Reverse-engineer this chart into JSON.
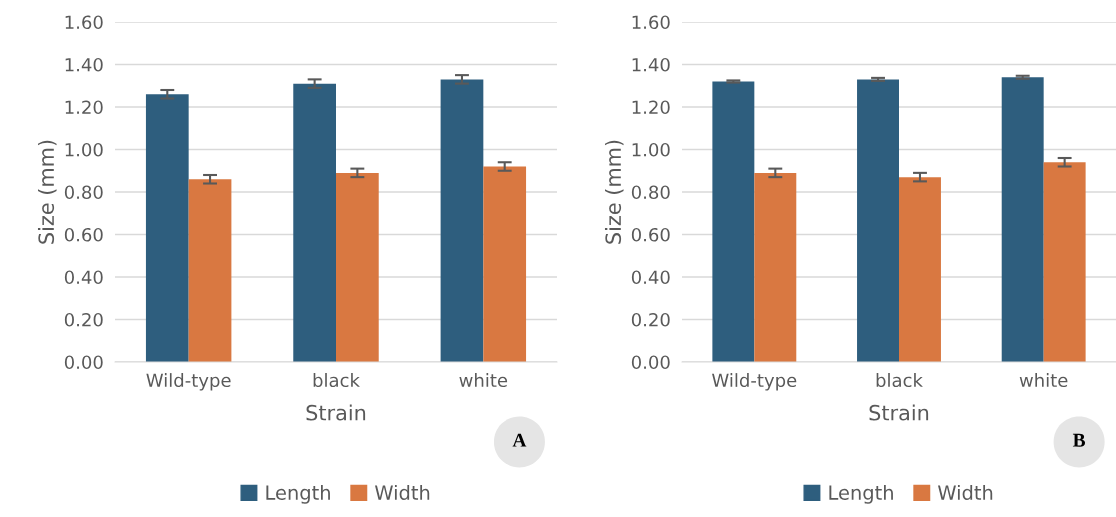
{
  "chart_data": [
    {
      "type": "bar",
      "xlabel": "Strain",
      "ylabel": "Size (mm)",
      "categories": [
        "Wild-type",
        "black",
        "white"
      ],
      "series": [
        {
          "name": "Length",
          "color": "#2e5e7e",
          "values": [
            1.26,
            1.31,
            1.33
          ],
          "errors": [
            0.02,
            0.02,
            0.02
          ]
        },
        {
          "name": "Width",
          "color": "#d97841",
          "values": [
            0.86,
            0.89,
            0.92
          ],
          "errors": [
            0.02,
            0.02,
            0.02
          ]
        }
      ],
      "ylim": [
        0,
        1.6
      ],
      "yticks": [
        {
          "value": 0,
          "label": "0.00"
        },
        {
          "value": 0.2,
          "label": "0.20"
        },
        {
          "value": 0.4,
          "label": "0.40"
        },
        {
          "value": 0.6,
          "label": "0.60"
        },
        {
          "value": 0.8,
          "label": "0.80"
        },
        {
          "value": 1.0,
          "label": "1.00"
        },
        {
          "value": 1.2,
          "label": "1.20"
        },
        {
          "value": 1.4,
          "label": "1.40"
        },
        {
          "value": 1.6,
          "label": "1.60"
        }
      ],
      "grid": "y",
      "legend": "bottom",
      "annotations": [
        "A"
      ]
    },
    {
      "type": "bar",
      "xlabel": "Strain",
      "ylabel": "Size (mm)",
      "categories": [
        "Wild-type",
        "black",
        "white"
      ],
      "series": [
        {
          "name": "Length",
          "color": "#2e5e7e",
          "values": [
            1.32,
            1.33,
            1.34
          ],
          "errors": [
            0.005,
            0.007,
            0.007
          ]
        },
        {
          "name": "Width",
          "color": "#d97841",
          "values": [
            0.89,
            0.87,
            0.94
          ],
          "errors": [
            0.02,
            0.02,
            0.02
          ]
        }
      ],
      "ylim": [
        0,
        1.6
      ],
      "yticks": [
        {
          "value": 0,
          "label": "0.00"
        },
        {
          "value": 0.2,
          "label": "0.20"
        },
        {
          "value": 0.4,
          "label": "0.40"
        },
        {
          "value": 0.6,
          "label": "0.60"
        },
        {
          "value": 0.8,
          "label": "0.80"
        },
        {
          "value": 1.0,
          "label": "1.00"
        },
        {
          "value": 1.2,
          "label": "1.20"
        },
        {
          "value": 1.4,
          "label": "1.40"
        },
        {
          "value": 1.6,
          "label": "1.60"
        }
      ],
      "grid": "y",
      "legend": "bottom",
      "annotations": [
        "B"
      ]
    }
  ]
}
